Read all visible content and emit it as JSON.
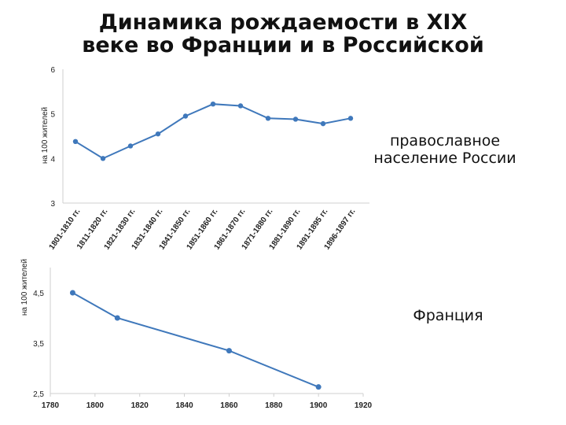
{
  "title_line1": "Динамика рождаемости в XIX",
  "title_line2": "веке во Франции и в Российской",
  "chart_data": [
    {
      "type": "line",
      "ylabel": "на 100 жителей",
      "ylim": [
        3,
        6
      ],
      "yticks": [
        "3",
        "4",
        "5",
        "6"
      ],
      "categories": [
        "1801-1810 гг.",
        "1811-1820 гг.",
        "1821-1830 гг.",
        "1831-1840 гг.",
        "1841-1850 гг.",
        "1851-1860 гг.",
        "1861-1870 гг.",
        "1871-1880 гг.",
        "1881-1890 гг.",
        "1891-1895 гг.",
        "1896-1897 гг."
      ],
      "series": [
        {
          "name": "православное население России",
          "values": [
            4.38,
            4.0,
            4.28,
            4.55,
            4.95,
            5.22,
            5.18,
            4.9,
            4.88,
            4.78,
            4.9
          ],
          "color": "#3f78bb"
        }
      ],
      "grid": false
    },
    {
      "type": "line",
      "ylabel": "на 100 жителей",
      "ylim": [
        2.5,
        5
      ],
      "yticks": [
        "2,5",
        "3,5",
        "4,5"
      ],
      "xlim": [
        1780,
        1920
      ],
      "xticks": [
        "1780",
        "1800",
        "1820",
        "1840",
        "1860",
        "1880",
        "1900",
        "1920"
      ],
      "series": [
        {
          "name": "Франция",
          "x": [
            1790,
            1810,
            1860,
            1900
          ],
          "values": [
            4.5,
            4.0,
            3.35,
            2.63
          ],
          "color": "#3f78bb"
        }
      ],
      "grid": false
    }
  ]
}
